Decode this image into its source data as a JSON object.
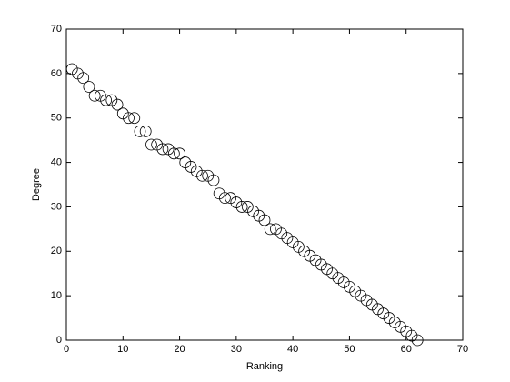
{
  "chart_data": {
    "type": "scatter",
    "x": [
      1,
      2,
      3,
      4,
      5,
      6,
      7,
      8,
      9,
      10,
      11,
      12,
      13,
      14,
      15,
      16,
      17,
      18,
      19,
      20,
      21,
      22,
      23,
      24,
      25,
      26,
      27,
      28,
      29,
      30,
      31,
      32,
      33,
      34,
      35,
      36,
      37,
      38,
      39,
      40,
      41,
      42,
      43,
      44,
      45,
      46,
      47,
      48,
      49,
      50,
      51,
      52,
      53,
      54,
      55,
      56,
      57,
      58,
      59,
      60,
      61,
      62
    ],
    "values": [
      61,
      60,
      59,
      57,
      55,
      55,
      54,
      54,
      53,
      51,
      50,
      50,
      47,
      47,
      44,
      44,
      43,
      43,
      42,
      42,
      40,
      39,
      38,
      37,
      37,
      36,
      33,
      32,
      32,
      31,
      30,
      30,
      29,
      28,
      27,
      25,
      25,
      24,
      23,
      22,
      21,
      20,
      19,
      18,
      17,
      16,
      15,
      14,
      13,
      12,
      11,
      10,
      9,
      8,
      7,
      6,
      5,
      4,
      3,
      2,
      1,
      0
    ],
    "color": "#000000",
    "x_label": "Ranking",
    "y_label": "Degree",
    "xlim": [
      0,
      70
    ],
    "ylim": [
      0,
      70
    ],
    "xticks": [
      0,
      10,
      20,
      30,
      40,
      50,
      60,
      70
    ],
    "yticks": [
      0,
      10,
      20,
      30,
      40,
      50,
      60,
      70
    ]
  }
}
